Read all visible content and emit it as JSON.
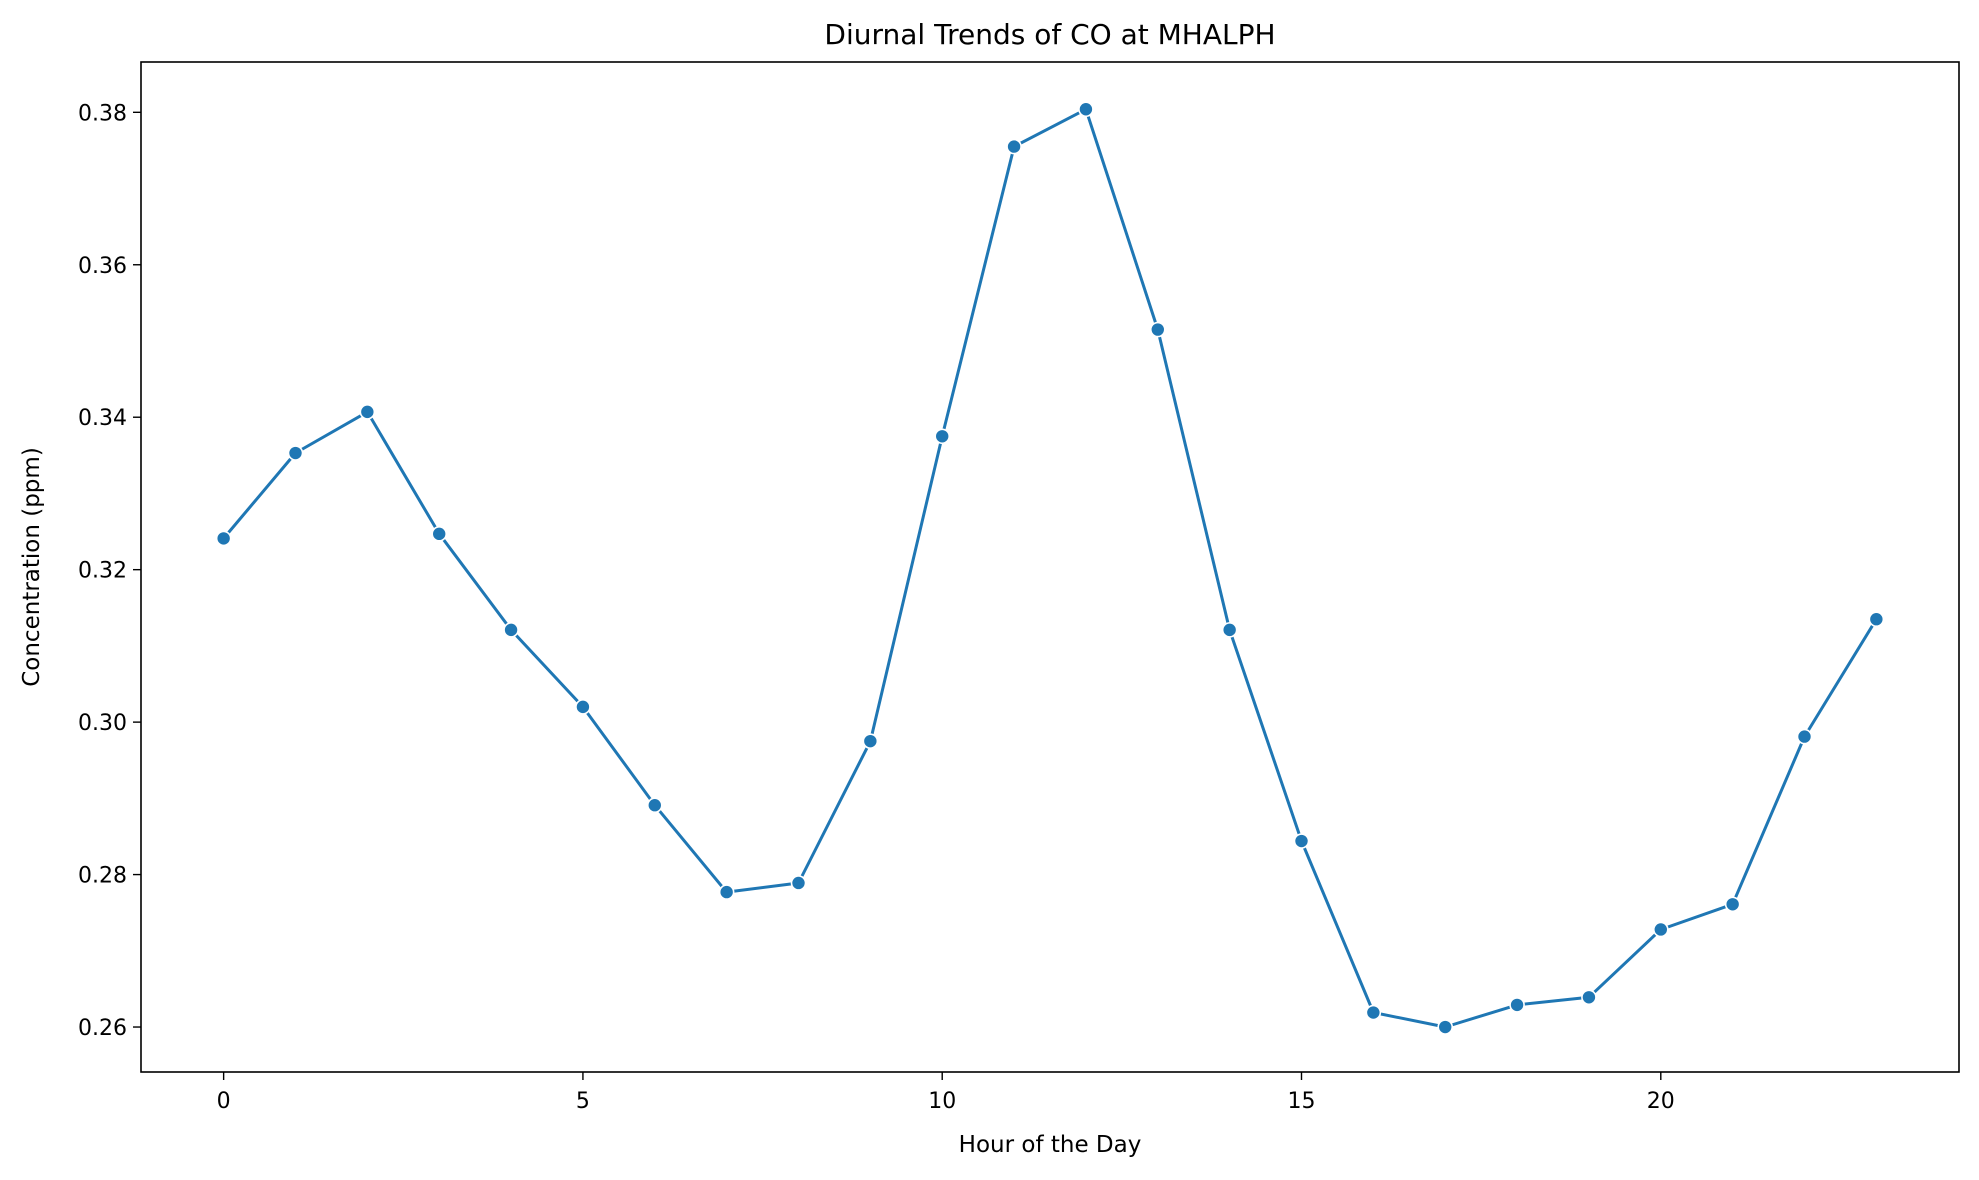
{
  "chart_data": {
    "type": "line",
    "title": "Diurnal Trends of CO at MHALPH",
    "xlabel": "Hour of the Day",
    "ylabel": "Concentration (ppm)",
    "xlim": [
      -1.15,
      24.15
    ],
    "ylim": [
      0.2541,
      0.3866
    ],
    "x_ticks": [
      0,
      5,
      10,
      15,
      20
    ],
    "y_ticks": [
      0.26,
      0.28,
      0.3,
      0.32,
      0.34,
      0.36,
      0.38
    ],
    "y_tick_labels": [
      "0.26",
      "0.28",
      "0.30",
      "0.32",
      "0.34",
      "0.36",
      "0.38"
    ],
    "grid": false,
    "markers": true,
    "series": [
      {
        "color": "#1f77b4",
        "x": [
          0,
          1,
          2,
          3,
          4,
          5,
          6,
          7,
          8,
          9,
          10,
          11,
          12,
          13,
          14,
          15,
          16,
          17,
          18,
          19,
          20,
          21,
          22,
          23
        ],
        "values": [
          0.3241,
          0.3353,
          0.3407,
          0.3247,
          0.3121,
          0.302,
          0.2891,
          0.2777,
          0.2789,
          0.2975,
          0.3375,
          0.3755,
          0.3804,
          0.3515,
          0.3121,
          0.2844,
          0.2619,
          0.26,
          0.2629,
          0.2639,
          0.2728,
          0.2761,
          0.2981,
          0.3135
        ]
      }
    ]
  }
}
